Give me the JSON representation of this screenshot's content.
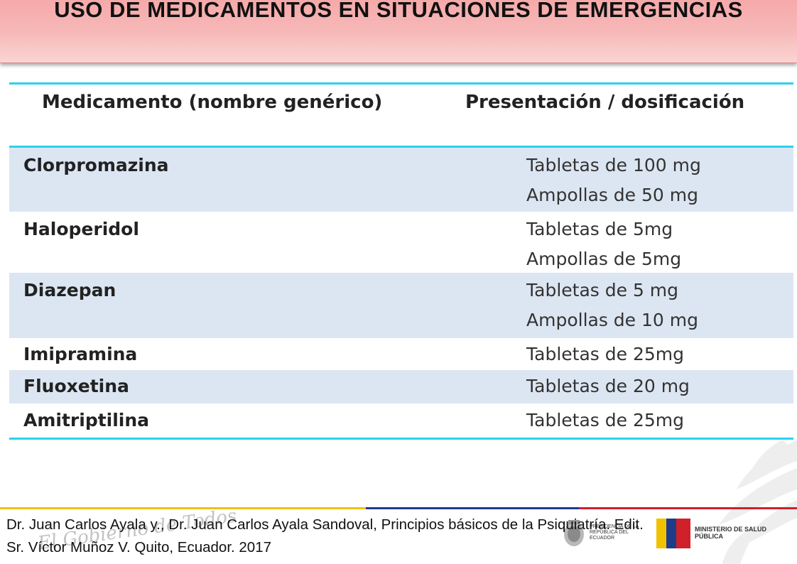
{
  "slide": {
    "title": "USO DE MEDICAMENTOS EN SITUACIONES DE EMERGENCIAS"
  },
  "table": {
    "headers": [
      "Medicamento (nombre genérico)",
      "Presentación / dosificación"
    ],
    "rows": [
      {
        "drug": "Clorpromazina",
        "doses": [
          "Tabletas de 100 mg",
          "Ampollas de 50 mg"
        ]
      },
      {
        "drug": "Haloperidol",
        "doses": [
          "Tabletas de 5mg",
          "Ampollas de 5mg"
        ]
      },
      {
        "drug": "Diazepan",
        "doses": [
          "Tabletas de 5 mg",
          "Ampollas de 10 mg"
        ]
      },
      {
        "drug": "Imipramina",
        "doses": [
          "Tabletas de 25mg"
        ]
      },
      {
        "drug": "Fluoxetina",
        "doses": [
          "Tabletas de 20 mg"
        ]
      },
      {
        "drug": "Amitriptilina",
        "doses": [
          "Tabletas de 25mg"
        ]
      }
    ]
  },
  "footer": {
    "citation_line1": "Dr. Juan Carlos Ayala y., Dr. Juan Carlos Ayala Sandoval, Principios básicos de la Psiquiatría. Edit.",
    "citation_line2": "Sr. Víctor Muñoz V. Quito, Ecuador. 2017",
    "watermark": "El Gobierno de Todos",
    "logo_presidencia": "PRESIDENCIA DE LA REPÚBLICA DEL ECUADOR",
    "logo_ministerio": "MINISTERIO DE SALUD PÚBLICA"
  },
  "colors": {
    "title_bg": "#f7b8b8",
    "rule": "#29d3ec",
    "row_shade": "#dce6f2",
    "flag_yellow": "#f2c100",
    "flag_blue": "#1f3c88",
    "flag_red": "#d0202a"
  }
}
